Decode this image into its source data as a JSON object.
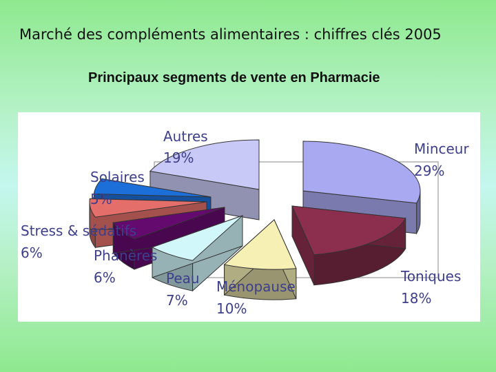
{
  "slide": {
    "title": "Marché des compléments alimentaires : chiffres clés 2005"
  },
  "chart_data": {
    "type": "pie",
    "title": "Principaux segments de vente en Pharmacie",
    "slices": [
      {
        "label": "Minceur",
        "value": 29,
        "value_label": "29%",
        "color": "#a9a9f2"
      },
      {
        "label": "Toniques",
        "value": 18,
        "value_label": "18%",
        "color": "#8c2f4f"
      },
      {
        "label": "Ménopause",
        "value": 10,
        "value_label": "10%",
        "color": "#f6f0b4"
      },
      {
        "label": "Peau",
        "value": 7,
        "value_label": "7%",
        "color": "#d2f7fa"
      },
      {
        "label": "Phanères",
        "value": 6,
        "value_label": "6%",
        "color": "#640a6e"
      },
      {
        "label": "Stress & sédatifs",
        "value": 6,
        "value_label": "6%",
        "color": "#e46f6a"
      },
      {
        "label": "Solaires",
        "value": 5,
        "value_label": "5%",
        "color": "#1c6fd8"
      },
      {
        "label": "Autres",
        "value": 19,
        "value_label": "19%",
        "color": "#c9c9f7"
      }
    ]
  }
}
